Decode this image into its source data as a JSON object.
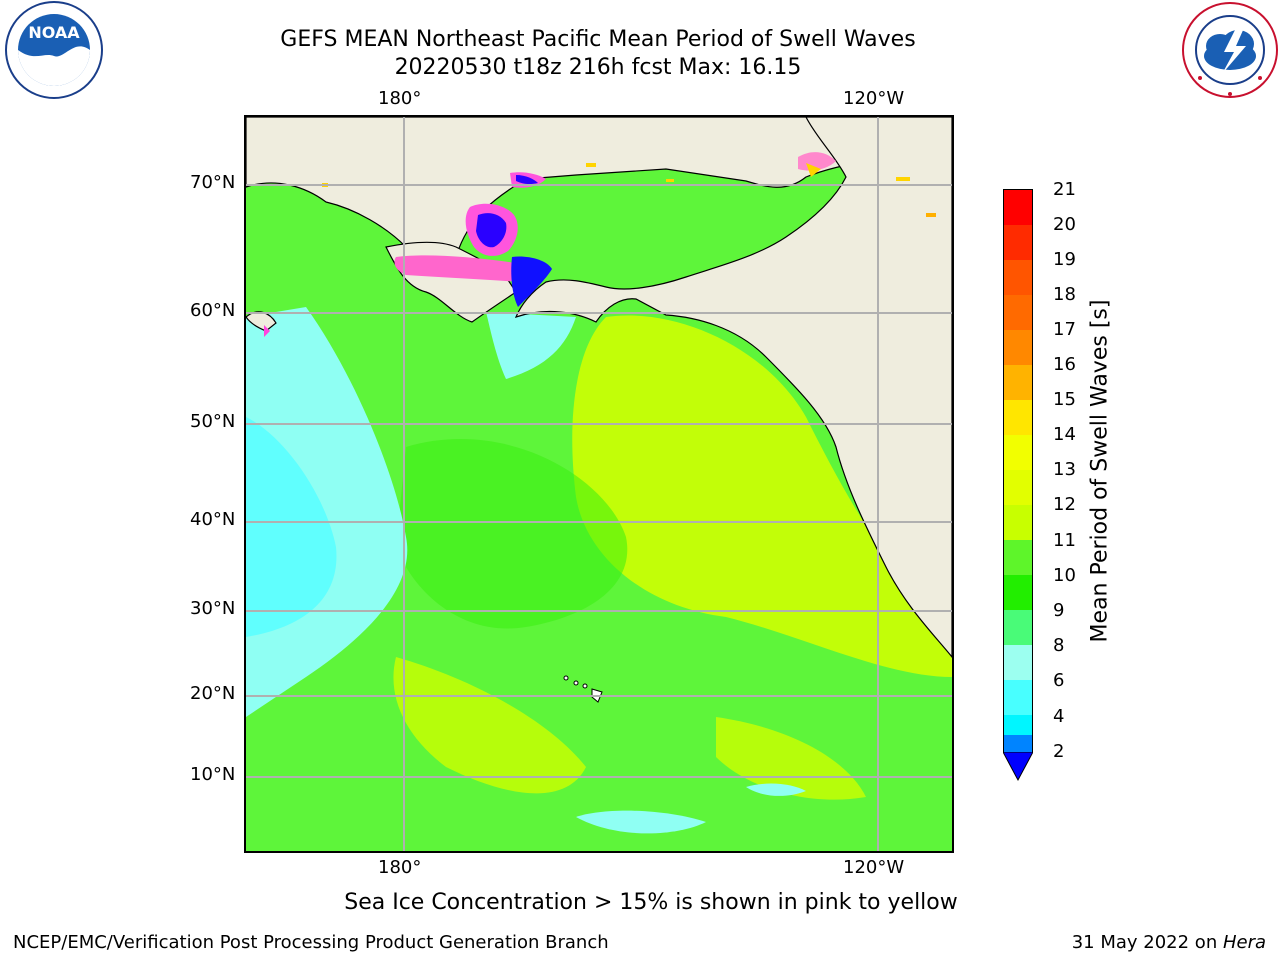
{
  "title": {
    "line1": "GEFS MEAN Northeast Pacific Mean Period of Swell Waves",
    "line2": "20220530 t18z 216h fcst   Max: 16.15"
  },
  "logos": {
    "noaa": {
      "text": "NOAA",
      "ring_text": "NATIONAL OCEANIC AND ATMOSPHERIC ADMINISTRATION · U.S. DEPARTMENT OF COMMERCE"
    },
    "nws": {
      "ring_text": "NATIONAL WEATHER SERVICE"
    }
  },
  "axes": {
    "top_ticks": [
      "180°",
      "120°W"
    ],
    "bottom_ticks": [
      "180°",
      "120°W"
    ],
    "lat_ticks": [
      "70°N",
      "60°N",
      "50°N",
      "40°N",
      "30°N",
      "20°N",
      "10°N"
    ]
  },
  "colorbar": {
    "label": "Mean Period of Swell Waves [s]",
    "ticks": [
      "21",
      "20",
      "19",
      "18",
      "17",
      "16",
      "15",
      "14",
      "13",
      "12",
      "11",
      "10",
      "9",
      "8",
      "6",
      "4",
      "2"
    ],
    "colors_top_to_bottom": [
      "#ff0000",
      "#ff2b00",
      "#ff5500",
      "#ff6a00",
      "#ff8800",
      "#ffb300",
      "#ffe600",
      "#f2ff00",
      "#e2ff00",
      "#c8ff00",
      "#5ef52a",
      "#22ee00",
      "#49fb78",
      "#9cfff0",
      "#48ffff",
      "#00f6ff",
      "#0084ff"
    ],
    "extend_color": "#0000ff"
  },
  "note": "Sea Ice Concentration > 15% is shown in pink to yellow",
  "footer": {
    "left": "NCEP/EMC/Verification Post Processing Product Generation Branch",
    "right_date": "31 May 2022 on ",
    "right_machine": "Hera"
  }
}
